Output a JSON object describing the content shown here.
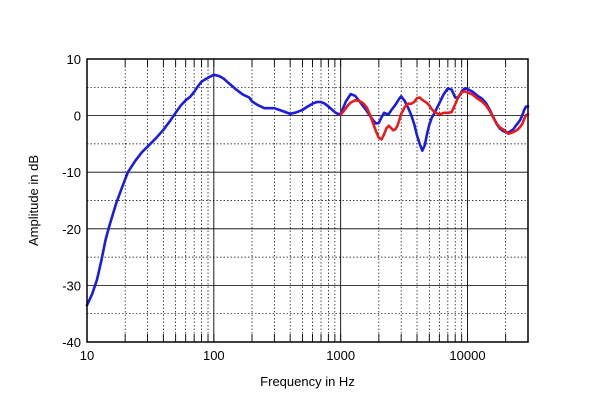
{
  "chart_data": {
    "type": "line",
    "xlabel": "Frequency in Hz",
    "ylabel": "Amplitude in dB",
    "x_scale": "log",
    "xlim": [
      10,
      30000
    ],
    "ylim": [
      -40,
      10
    ],
    "grid": true,
    "x_ticks": [
      {
        "value": 10,
        "label": "10"
      },
      {
        "value": 100,
        "label": "100"
      },
      {
        "value": 1000,
        "label": "1000"
      },
      {
        "value": 10000,
        "label": "10000"
      }
    ],
    "y_ticks": [
      {
        "value": 10,
        "label": "10"
      },
      {
        "value": 0,
        "label": "0"
      },
      {
        "value": -10,
        "label": "-10"
      },
      {
        "value": -20,
        "label": "-20"
      },
      {
        "value": -30,
        "label": "-30"
      },
      {
        "value": -40,
        "label": "-40"
      }
    ],
    "series": [
      {
        "color": "#1c1ce0",
        "x": [
          10,
          11,
          12,
          13,
          14,
          15,
          17,
          19,
          21,
          24,
          27,
          30,
          35,
          40,
          45,
          50,
          55,
          60,
          65,
          70,
          75,
          80,
          90,
          100,
          110,
          120,
          130,
          140,
          150,
          170,
          190,
          200,
          220,
          250,
          280,
          300,
          350,
          400,
          450,
          500,
          550,
          600,
          650,
          700,
          750,
          800,
          850,
          900,
          950,
          1000,
          1100,
          1200,
          1300,
          1400,
          1500,
          1600,
          1700,
          1800,
          1900,
          2000,
          2100,
          2200,
          2300,
          2400,
          2500,
          2700,
          2900,
          3000,
          3200,
          3400,
          3600,
          3800,
          4000,
          4200,
          4400,
          4600,
          4800,
          5000,
          5200,
          5500,
          6000,
          6500,
          7000,
          7500,
          8000,
          8500,
          9000,
          9500,
          10000,
          11000,
          12000,
          13000,
          14000,
          15000,
          16000,
          17000,
          18000,
          19000,
          20000,
          21000,
          22000,
          23000,
          24000,
          25000,
          26000,
          27000,
          28000,
          29000,
          30000
        ],
        "y": [
          -33.5,
          -31.5,
          -29,
          -25.5,
          -22,
          -19.5,
          -15.5,
          -12.5,
          -10,
          -8,
          -6.5,
          -5.5,
          -4,
          -2.5,
          -1,
          0.5,
          1.8,
          2.7,
          3.3,
          4.2,
          5.2,
          6,
          6.7,
          7.2,
          7,
          6.5,
          5.8,
          5.2,
          4.6,
          3.7,
          3.2,
          2.5,
          1.9,
          1.3,
          1.3,
          1.3,
          0.8,
          0.3,
          0.6,
          1,
          1.6,
          2.1,
          2.4,
          2.4,
          2.1,
          1.6,
          1.1,
          0.6,
          0.3,
          0.3,
          2.5,
          3.8,
          3.5,
          2.6,
          1.7,
          0.9,
          0,
          -0.8,
          -1.4,
          -1.3,
          -0.3,
          0.5,
          0.3,
          0.3,
          0.9,
          1.9,
          3,
          3.4,
          2.6,
          1.4,
          0.1,
          -1.5,
          -3.5,
          -5,
          -6.2,
          -5.3,
          -3.2,
          -1.6,
          -0.5,
          0.5,
          2.2,
          3.8,
          4.8,
          4.6,
          3.2,
          3.2,
          4.3,
          4.8,
          4.7,
          4.2,
          3.5,
          3,
          2.2,
          1,
          -0.3,
          -1.5,
          -2.3,
          -2.7,
          -2.9,
          -3,
          -2.7,
          -2.4,
          -1.8,
          -1.3,
          -0.8,
          0,
          1,
          1.6,
          1.6
        ]
      },
      {
        "color": "#e81c1c",
        "x": [
          1000,
          1050,
          1100,
          1150,
          1200,
          1300,
          1400,
          1500,
          1600,
          1700,
          1800,
          1900,
          2000,
          2100,
          2200,
          2300,
          2400,
          2500,
          2600,
          2700,
          2800,
          2900,
          3000,
          3200,
          3400,
          3600,
          3800,
          4000,
          4200,
          4400,
          4600,
          4800,
          5000,
          5200,
          5500,
          6000,
          6500,
          7000,
          7500,
          8000,
          8500,
          9000,
          9500,
          10000,
          11000,
          12000,
          13000,
          14000,
          15000,
          16000,
          17000,
          18000,
          19000,
          20000,
          21000,
          22000,
          23000,
          24000,
          25000,
          26000,
          27000,
          28000,
          29000,
          30000
        ],
        "y": [
          0.2,
          0.7,
          1.3,
          1.9,
          2.3,
          2.7,
          2.6,
          2.2,
          1.5,
          0.2,
          -1.3,
          -2.8,
          -3.9,
          -4.2,
          -3.3,
          -2.2,
          -1.8,
          -2.2,
          -2.6,
          -2.4,
          -1.8,
          -0.8,
          0.3,
          1.5,
          2.1,
          2.1,
          2.4,
          3.1,
          3.2,
          2.8,
          2.5,
          2.2,
          1.8,
          1.2,
          0.6,
          0.2,
          0.5,
          0.5,
          0.6,
          2,
          3.4,
          4.1,
          4.3,
          4.1,
          3.7,
          3,
          2.5,
          1.8,
          0.8,
          -0.4,
          -1.4,
          -2.1,
          -2.4,
          -2.8,
          -3.2,
          -3.1,
          -2.9,
          -2.7,
          -2.4,
          -2,
          -1.5,
          -0.6,
          0.1,
          0.2
        ]
      }
    ]
  }
}
